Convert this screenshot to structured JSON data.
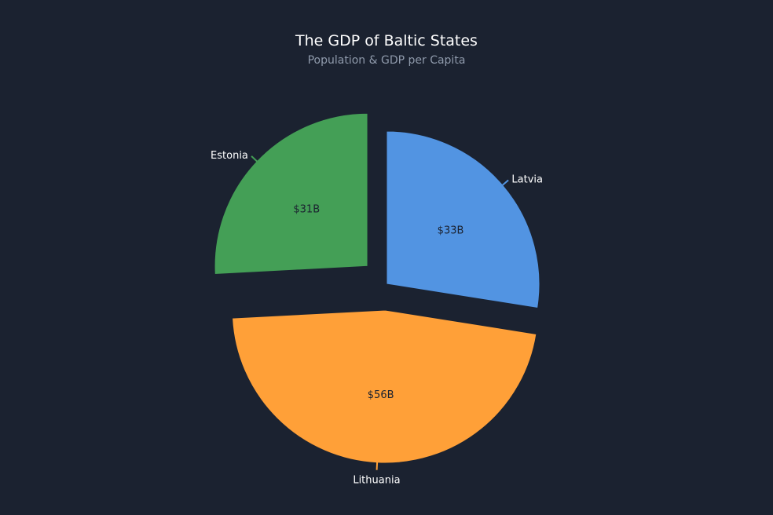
{
  "chart_data": {
    "type": "pie",
    "title": "The GDP of Baltic States",
    "subtitle": "Population & GDP per Capita",
    "slices": [
      {
        "label": "Latvia",
        "value": 33,
        "value_label": "$33B",
        "color": "#5294e2",
        "exploded": false
      },
      {
        "label": "Lithuania",
        "value": 56,
        "value_label": "$56B",
        "color": "#ffa038",
        "exploded": true
      },
      {
        "label": "Estonia",
        "value": 31,
        "value_label": "$31B",
        "color": "#449f56",
        "exploded": true
      }
    ],
    "start_angle_deg": 0,
    "direction": "clockwise"
  }
}
